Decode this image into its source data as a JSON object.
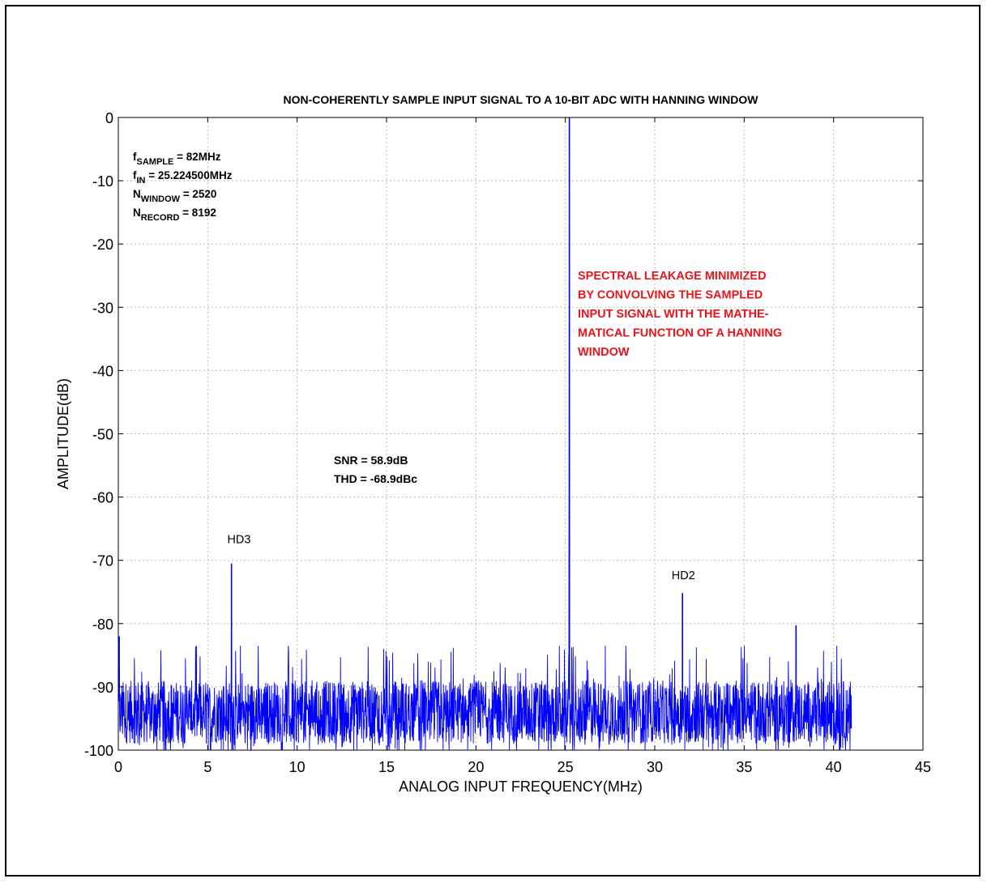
{
  "chart_data": {
    "type": "line",
    "title": "NON-COHERENTLY SAMPLE INPUT SIGNAL TO A 10-BIT ADC WITH HANNING WINDOW",
    "xlabel": "ANALOG INPUT FREQUENCY(MHz)",
    "ylabel": "AMPLITUDE(dB)",
    "xlim": [
      0,
      45
    ],
    "ylim": [
      -100,
      0
    ],
    "x_ticks": [
      "0",
      "5",
      "10",
      "15",
      "20",
      "25",
      "30",
      "35",
      "40",
      "45"
    ],
    "y_ticks": [
      "0",
      "-10",
      "-20",
      "-30",
      "-40",
      "-50",
      "-60",
      "-70",
      "-80",
      "-90",
      "-100"
    ],
    "grid": true,
    "color": "#0000ff",
    "noise_floor": {
      "x_range": [
        0,
        41
      ],
      "mean_db": -94,
      "min_db": -100,
      "max_db": -83
    },
    "peaks": [
      {
        "name": "fundamental",
        "x": 25.2245,
        "y": 0
      },
      {
        "name": "HD3",
        "x": 6.33,
        "y": -70.5
      },
      {
        "name": "HD2",
        "x": 31.55,
        "y": -75.2
      },
      {
        "name": "spur",
        "x": 37.9,
        "y": -80.3
      },
      {
        "name": "dc",
        "x": 0.05,
        "y": -82
      }
    ],
    "parameters": [
      {
        "symbol": "f",
        "subscript": "SAMPLE",
        "value": " = 82MHz"
      },
      {
        "symbol": "f",
        "subscript": "IN",
        "value": " = 25.224500MHz"
      },
      {
        "symbol": "N",
        "subscript": "WINDOW",
        "value": " = 2520"
      },
      {
        "symbol": "N",
        "subscript": "RECORD",
        "value": " = 8192"
      }
    ],
    "annotation_lines": [
      "SPECTRAL LEAKAGE MINIMIZED",
      "BY CONVOLVING THE SAMPLED",
      "INPUT SIGNAL WITH THE MATHE-",
      "MATICAL FUNCTION OF A HANNING",
      "WINDOW"
    ],
    "annotation_color": "#e8141c",
    "metrics": [
      "SNR = 58.9dB",
      "THD = -68.9dBc"
    ],
    "peak_labels": [
      {
        "text": "HD3",
        "x": 6.75,
        "y": -67.3
      },
      {
        "text": "HD2",
        "x": 31.6,
        "y": -73
      }
    ]
  }
}
